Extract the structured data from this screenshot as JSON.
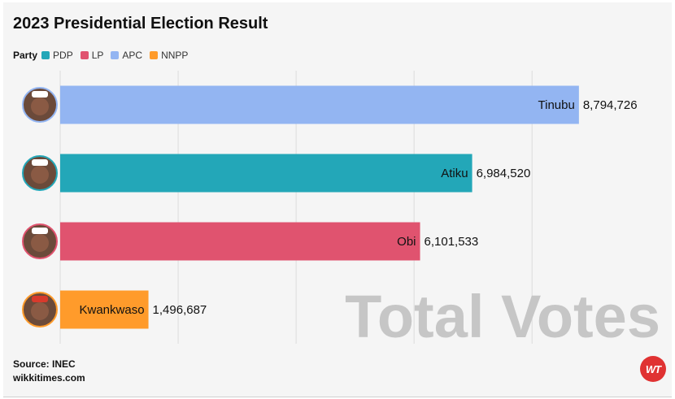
{
  "title": "2023 Presidential Election Result",
  "legend": {
    "title": "Party",
    "items": [
      {
        "label": "PDP",
        "color": "#23a7b8"
      },
      {
        "label": "LP",
        "color": "#e0536f"
      },
      {
        "label": "APC",
        "color": "#93b5f2"
      },
      {
        "label": "NNPP",
        "color": "#ff9b2b"
      }
    ]
  },
  "watermark": "Total Votes",
  "source": {
    "line1": "Source: INEC",
    "line2": "wikkitimes.com"
  },
  "logo_text": "WT",
  "chart_data": {
    "type": "bar",
    "orientation": "horizontal",
    "title": "2023 Presidential Election Result",
    "xlim": [
      0,
      9100000
    ],
    "grid": true,
    "legend_placement": "top-left",
    "categories": [
      "Tinubu",
      "Atiku",
      "Obi",
      "Kwankwaso"
    ],
    "values": [
      8794726,
      6984520,
      6101533,
      1496687
    ],
    "value_labels": [
      "8,794,726",
      "6,984,520",
      "6,101,533",
      "1,496,687"
    ],
    "party": [
      "APC",
      "PDP",
      "LP",
      "NNPP"
    ],
    "colors": [
      "#93b5f2",
      "#23a7b8",
      "#e0536f",
      "#ff9b2b"
    ]
  }
}
